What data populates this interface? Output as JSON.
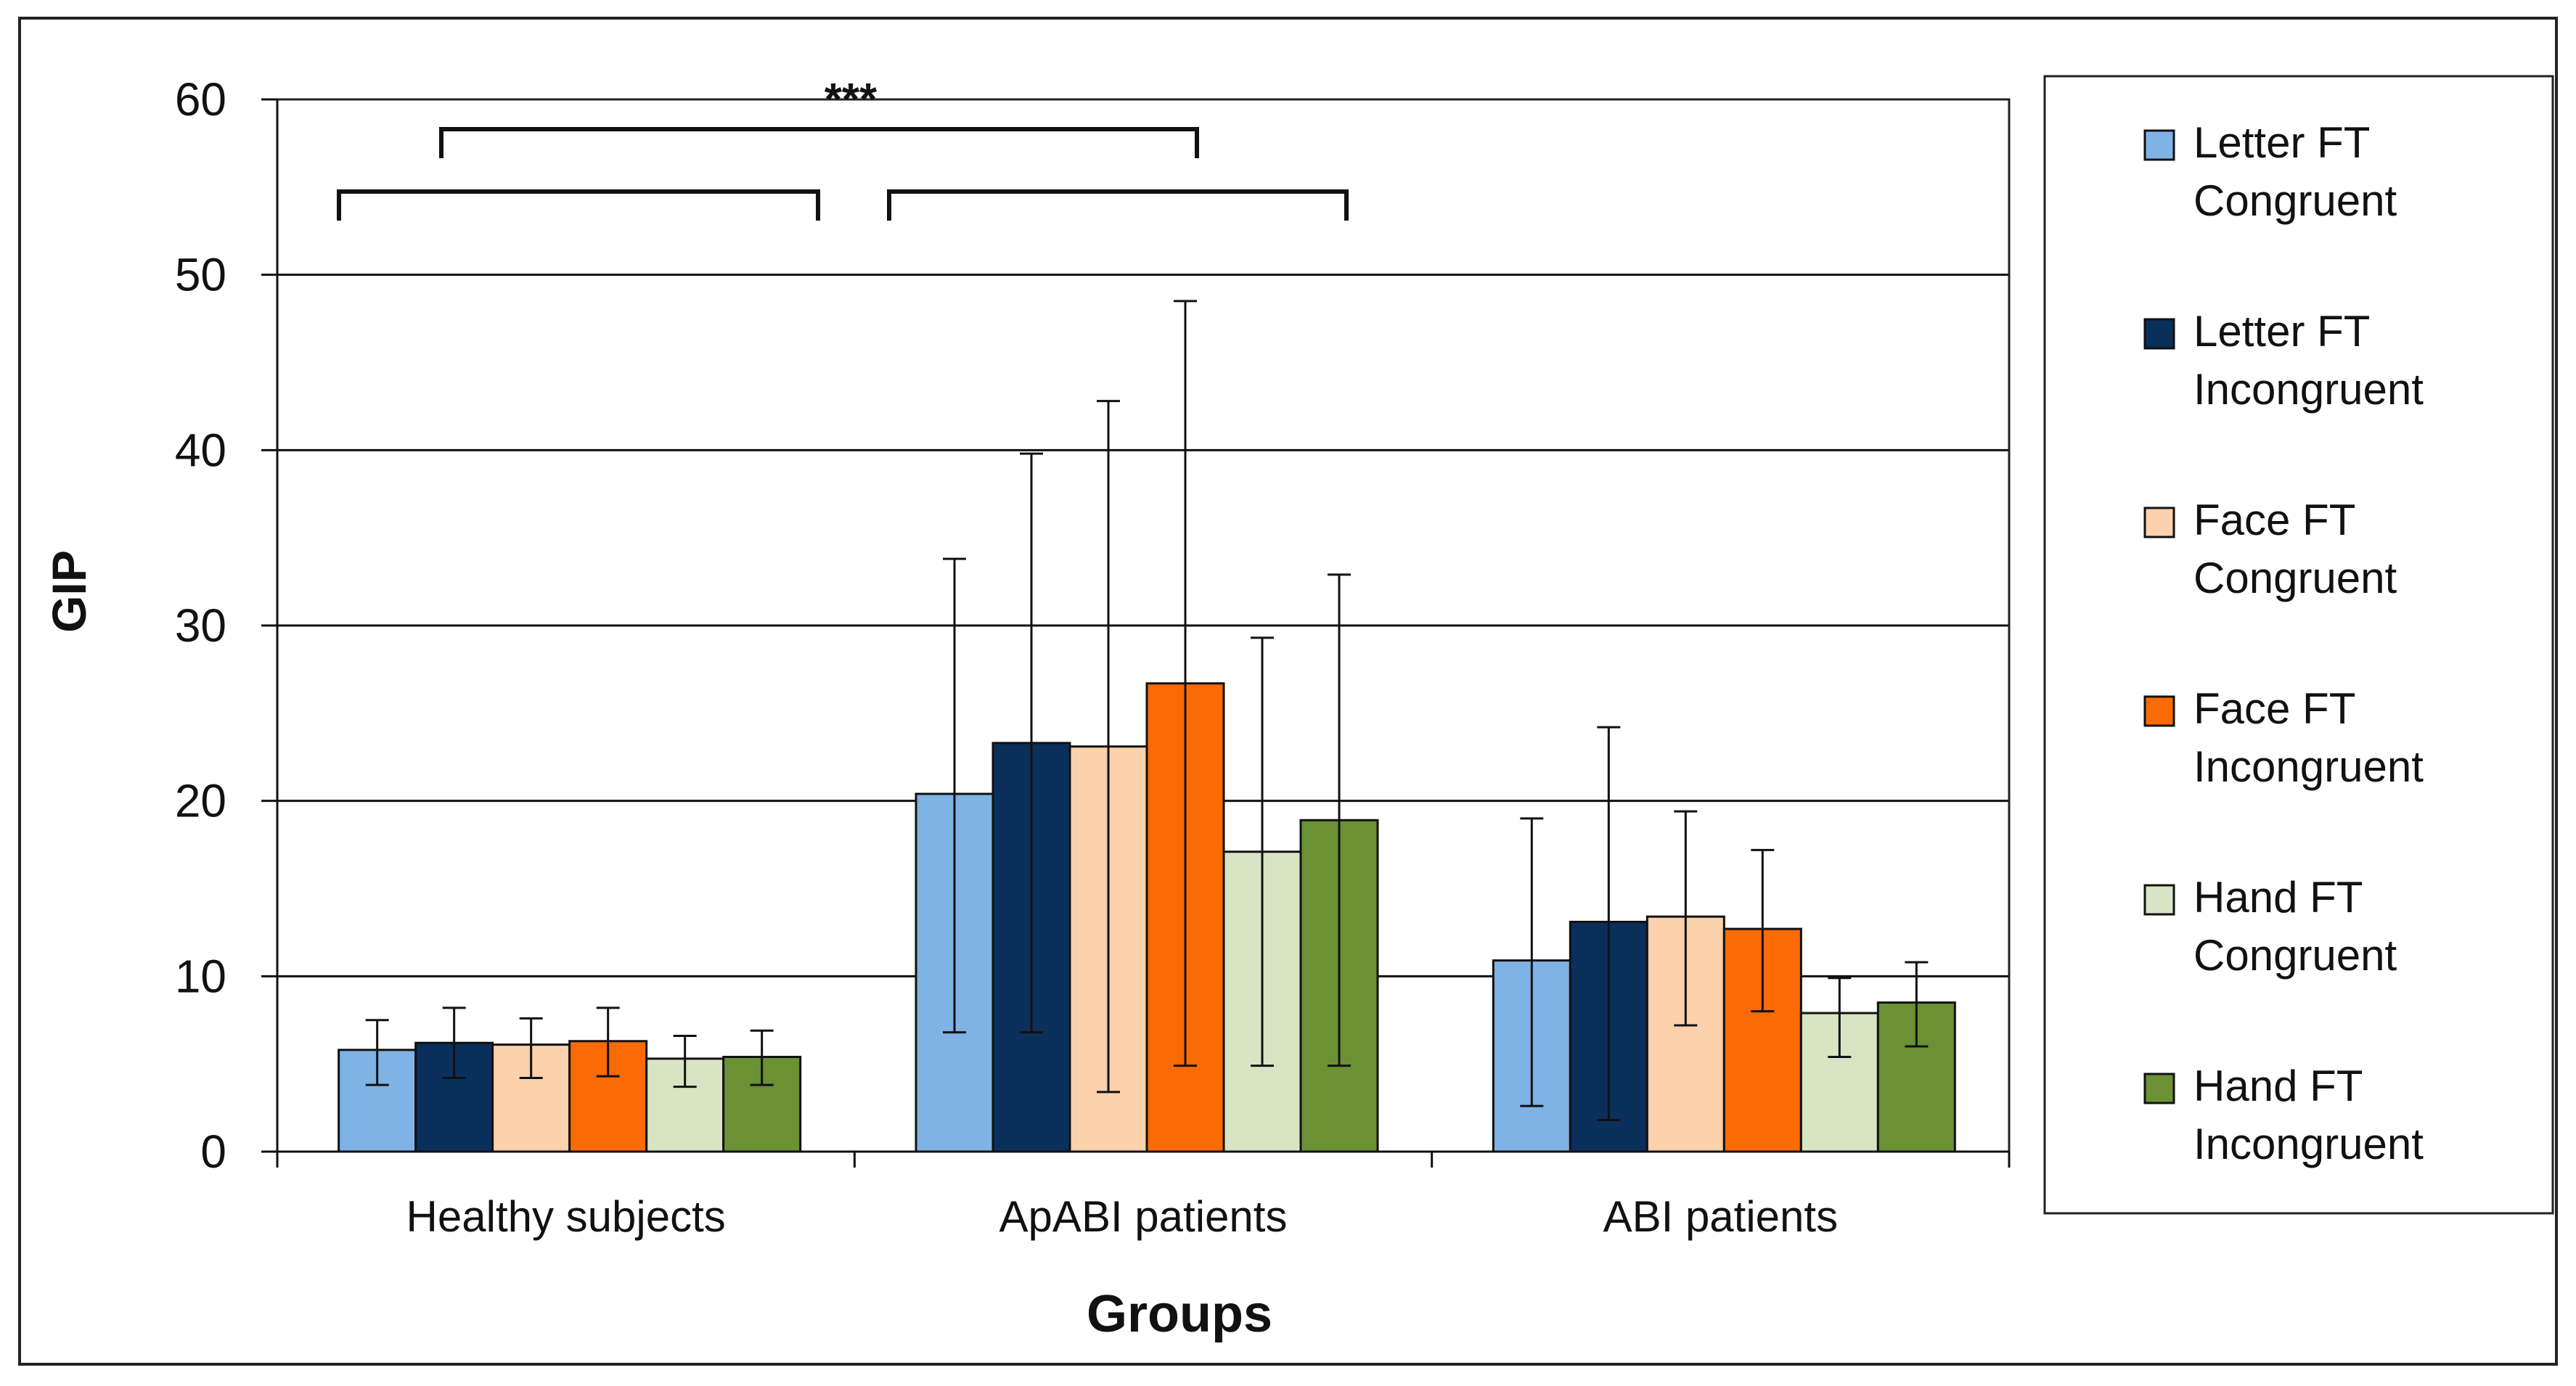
{
  "chart_data": {
    "type": "bar",
    "title": "",
    "xlabel": "Groups",
    "ylabel": "GIP",
    "ylim": [
      0,
      60
    ],
    "yticks": [
      0,
      10,
      20,
      30,
      40,
      50,
      60
    ],
    "grid": true,
    "legend_position": "right",
    "categories": [
      "Healthy subjects",
      "ApABI patients",
      "ABI patients"
    ],
    "series": [
      {
        "name": "Letter FT Congruent",
        "name_lines": [
          "Letter FT",
          "Congruent"
        ],
        "color": "#7fb2e5",
        "values": [
          5.8,
          20.4,
          10.9
        ],
        "err_low": [
          3.8,
          6.8,
          2.6
        ],
        "err_high": [
          7.5,
          33.8,
          19.0
        ]
      },
      {
        "name": "Letter FT Incongruent",
        "name_lines": [
          "Letter FT",
          "Incongruent"
        ],
        "color": "#0b2f5b",
        "values": [
          6.2,
          23.3,
          13.1
        ],
        "err_low": [
          4.2,
          6.8,
          1.8
        ],
        "err_high": [
          8.2,
          39.8,
          24.2
        ]
      },
      {
        "name": "Face FT Congruent",
        "name_lines": [
          "Face FT",
          "Congruent"
        ],
        "color": "#fdd1ac",
        "values": [
          6.1,
          23.1,
          13.4
        ],
        "err_low": [
          4.2,
          3.4,
          7.2
        ],
        "err_high": [
          7.6,
          42.8,
          19.4
        ]
      },
      {
        "name": "Face FT Incongruent",
        "name_lines": [
          "Face FT",
          "Incongruent"
        ],
        "color": "#fa6a05",
        "values": [
          6.3,
          26.7,
          12.7
        ],
        "err_low": [
          4.3,
          4.9,
          8.0
        ],
        "err_high": [
          8.2,
          48.5,
          17.2
        ]
      },
      {
        "name": "Hand FT Congruent",
        "name_lines": [
          "Hand FT",
          "Congruent"
        ],
        "color": "#d8e5c4",
        "values": [
          5.3,
          17.1,
          7.9
        ],
        "err_low": [
          3.7,
          4.9,
          5.4
        ],
        "err_high": [
          6.6,
          29.3,
          9.9
        ]
      },
      {
        "name": "Hand FT Incongruent",
        "name_lines": [
          "Hand FT",
          "Incongruent"
        ],
        "color": "#6a9133",
        "values": [
          5.4,
          18.9,
          8.5
        ],
        "err_low": [
          3.8,
          4.9,
          6.0
        ],
        "err_high": [
          6.9,
          32.9,
          10.8
        ]
      }
    ],
    "annotations": [
      {
        "text": "***"
      }
    ]
  }
}
